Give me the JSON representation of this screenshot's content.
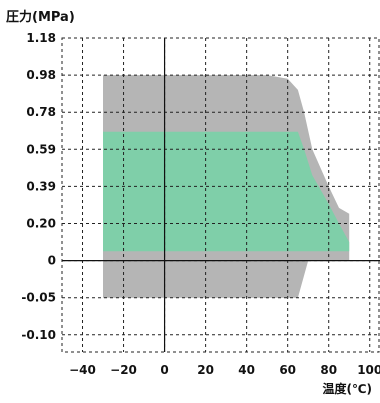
{
  "chart_data": {
    "type": "area",
    "ylabel": "圧力(MPa)",
    "xlabel": "温度(℃)",
    "x_ticks": [
      -40,
      -20,
      0,
      20,
      40,
      60,
      80,
      100
    ],
    "y_ticks": [
      "1.18",
      "0.98",
      "0.78",
      "0.59",
      "0.39",
      "0.20",
      "0",
      "-0.05",
      "-0.10"
    ],
    "xlim": [
      -50,
      105
    ],
    "grid": true,
    "regions": [
      {
        "color": "#b5b5b5",
        "points": [
          [
            -30,
            -0.05
          ],
          [
            -30,
            0.98
          ],
          [
            50,
            0.98
          ],
          [
            60,
            0.96
          ],
          [
            65,
            0.9
          ],
          [
            68,
            0.78
          ],
          [
            72,
            0.59
          ],
          [
            80,
            0.39
          ],
          [
            85,
            0.28
          ],
          [
            90,
            0.25
          ],
          [
            90,
            0
          ],
          [
            70,
            0
          ],
          [
            65,
            -0.05
          ]
        ]
      },
      {
        "color": "#7fcfa9",
        "points": [
          [
            -30,
            0.05
          ],
          [
            -30,
            0.68
          ],
          [
            65,
            0.68
          ],
          [
            68,
            0.59
          ],
          [
            72,
            0.45
          ],
          [
            80,
            0.3
          ],
          [
            85,
            0.2
          ],
          [
            90,
            0.1
          ],
          [
            90,
            0.05
          ]
        ]
      }
    ]
  }
}
